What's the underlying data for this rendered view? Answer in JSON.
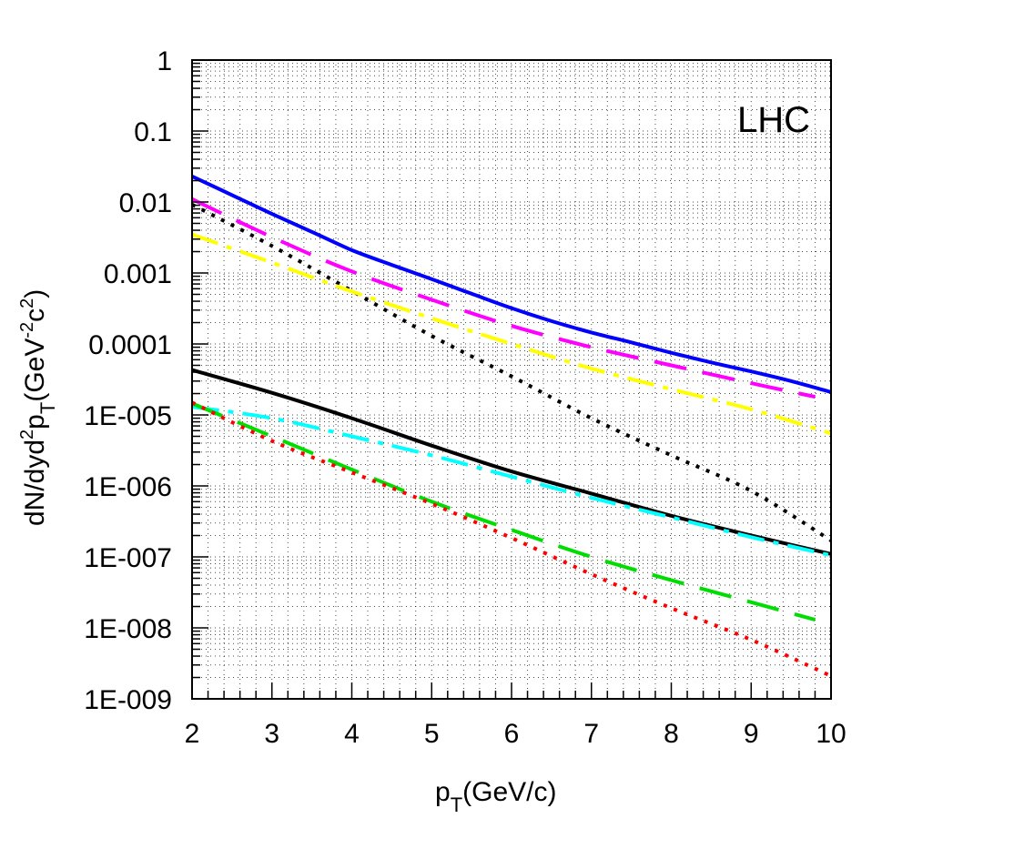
{
  "chart_data": {
    "type": "line",
    "title": "",
    "annotation": "LHC",
    "xlabel": {
      "main": "p",
      "sub": "T",
      "rest": "(GeV/c)"
    },
    "ylabel": {
      "p1": "dN/dyd",
      "sup1": "2",
      "p2": "p",
      "sub": "T",
      "p3": "(GeV",
      "sup2": "-2",
      "p4": "c",
      "sup3": "2",
      "p5": ")"
    },
    "xlim": [
      2,
      10
    ],
    "ylim": [
      1e-09,
      1
    ],
    "yscale": "log",
    "grid": true,
    "x_ticks": [
      2,
      3,
      4,
      5,
      6,
      7,
      8,
      9,
      10
    ],
    "x_tick_labels": [
      "2",
      "3",
      "4",
      "5",
      "6",
      "7",
      "8",
      "9",
      "10"
    ],
    "y_ticks": [
      1,
      0.1,
      0.01,
      0.001,
      0.0001,
      1e-05,
      1e-06,
      1e-07,
      1e-08,
      1e-09
    ],
    "y_tick_labels": [
      "1",
      "0.1",
      "0.01",
      "0.001",
      "0.0001",
      "1E-005",
      "1E-006",
      "1E-007",
      "1E-008",
      "1E-009"
    ],
    "series": [
      {
        "color": "#0000ff",
        "style": "solid",
        "points": [
          [
            2,
            0.023
          ],
          [
            2.5,
            0.0125
          ],
          [
            3,
            0.0068
          ],
          [
            3.5,
            0.0038
          ],
          [
            4,
            0.0021
          ],
          [
            4.5,
            0.0013
          ],
          [
            5,
            0.00082
          ],
          [
            5.5,
            0.00051
          ],
          [
            6,
            0.00032
          ],
          [
            6.5,
            0.00021
          ],
          [
            7,
            0.000145
          ],
          [
            7.5,
            0.000105
          ],
          [
            8,
            7.5e-05
          ],
          [
            8.5,
            5.5e-05
          ],
          [
            9,
            4.1e-05
          ],
          [
            9.5,
            3e-05
          ],
          [
            10,
            2.1e-05
          ]
        ]
      },
      {
        "color": "#ff00ff",
        "style": "long-dash",
        "points": [
          [
            2,
            0.011
          ],
          [
            3,
            0.0032
          ],
          [
            4,
            0.00105
          ],
          [
            5,
            0.00042
          ],
          [
            6,
            0.00018
          ],
          [
            7,
            9e-05
          ],
          [
            8,
            5e-05
          ],
          [
            9,
            2.8e-05
          ],
          [
            9.8,
            1.8e-05
          ]
        ]
      },
      {
        "color": "#000000",
        "style": "dotted",
        "points": [
          [
            2,
            0.0092
          ],
          [
            3,
            0.0024
          ],
          [
            4,
            0.00056
          ],
          [
            5,
            0.00013
          ],
          [
            6,
            3.5e-05
          ],
          [
            7,
            9e-06
          ],
          [
            8,
            2.7e-06
          ],
          [
            9,
            8.5e-07
          ],
          [
            10,
            1.7e-07
          ]
        ]
      },
      {
        "color": "#ffff00",
        "style": "dash-dot",
        "points": [
          [
            2,
            0.0035
          ],
          [
            3,
            0.0014
          ],
          [
            4,
            0.00055
          ],
          [
            5,
            0.00023
          ],
          [
            6,
            0.0001
          ],
          [
            7,
            4.5e-05
          ],
          [
            8,
            2.3e-05
          ],
          [
            9,
            1.2e-05
          ],
          [
            10,
            5.5e-06
          ]
        ]
      },
      {
        "color": "#000000",
        "style": "solid",
        "points": [
          [
            2,
            4.3e-05
          ],
          [
            3,
            2.05e-05
          ],
          [
            4,
            9e-06
          ],
          [
            5,
            3.7e-06
          ],
          [
            6,
            1.6e-06
          ],
          [
            7,
            7.8e-07
          ],
          [
            8,
            3.8e-07
          ],
          [
            9,
            2e-07
          ],
          [
            10,
            1.1e-07
          ]
        ]
      },
      {
        "color": "#00ffff",
        "style": "dash-dot",
        "points": [
          [
            2,
            1.3e-05
          ],
          [
            3,
            9e-06
          ],
          [
            4,
            5e-06
          ],
          [
            5,
            2.7e-06
          ],
          [
            6,
            1.35e-06
          ],
          [
            7,
            6.8e-07
          ],
          [
            8,
            3.6e-07
          ],
          [
            9,
            1.9e-07
          ],
          [
            10,
            1.05e-07
          ]
        ]
      },
      {
        "color": "#00dd00",
        "style": "long-dash",
        "points": [
          [
            2,
            1.45e-05
          ],
          [
            3,
            5e-06
          ],
          [
            4,
            1.7e-06
          ],
          [
            5,
            6e-07
          ],
          [
            6,
            2.4e-07
          ],
          [
            7,
            1e-07
          ],
          [
            8,
            4.7e-08
          ],
          [
            9,
            2.3e-08
          ],
          [
            9.8,
            1.3e-08
          ]
        ]
      },
      {
        "color": "#ff0000",
        "style": "dotted",
        "points": [
          [
            2,
            1.5e-05
          ],
          [
            3,
            4.3e-06
          ],
          [
            4,
            1.55e-06
          ],
          [
            5,
            5.6e-07
          ],
          [
            6,
            1.85e-07
          ],
          [
            7,
            5.7e-08
          ],
          [
            8,
            1.9e-08
          ],
          [
            9,
            6.8e-09
          ],
          [
            10,
            2.1e-09
          ]
        ]
      }
    ]
  }
}
